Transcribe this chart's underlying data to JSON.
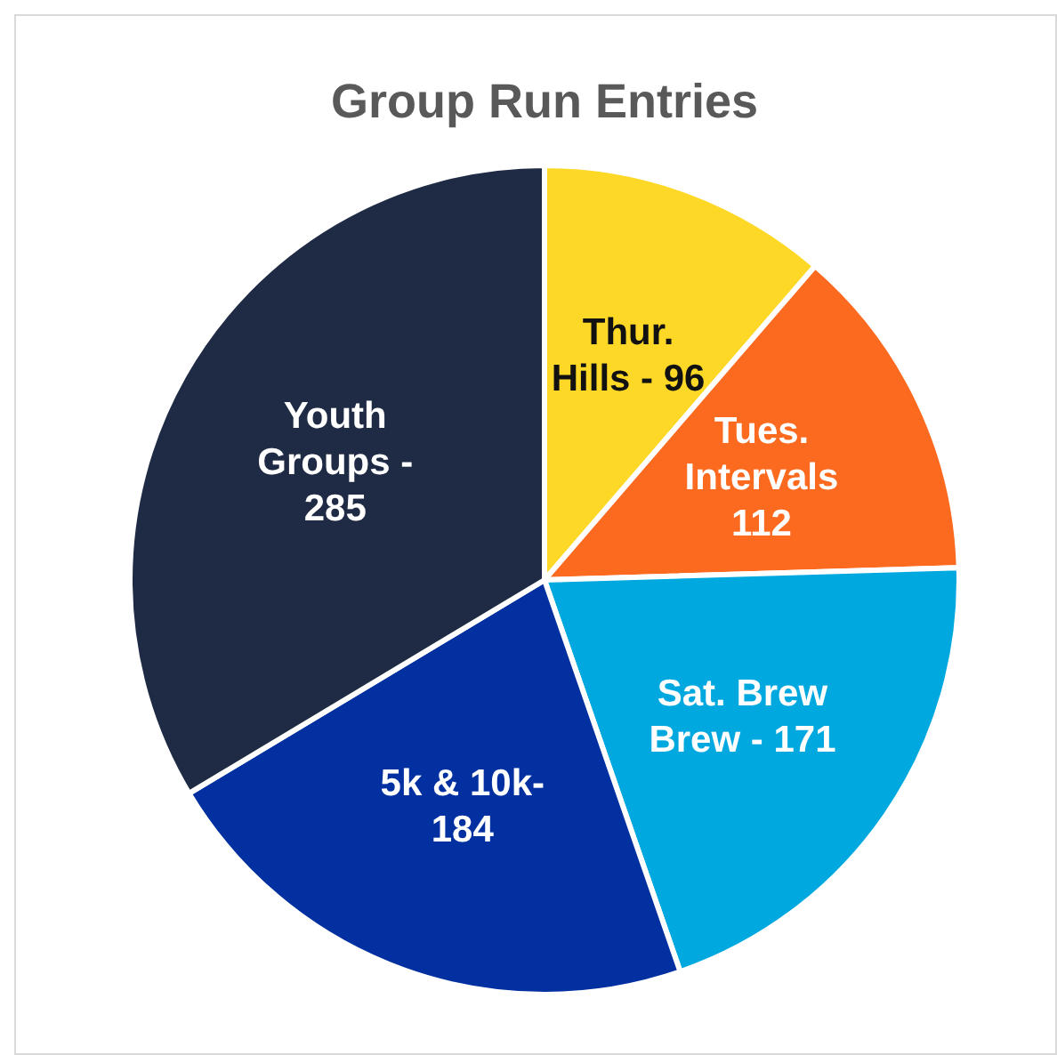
{
  "chart_data": {
    "type": "pie",
    "title": "Group Run Entries",
    "categories": [
      "Thur. Hills - 96",
      "Tues. Intervals 112",
      "Sat. Brew Brew - 171",
      "5k & 10k- 184",
      "Youth Groups - 285"
    ],
    "values": [
      96,
      112,
      171,
      184,
      285
    ],
    "colors": [
      "#fdd826",
      "#fc6a1f",
      "#00a8e0",
      "#0230a0",
      "#1f2a44"
    ],
    "legend": false
  }
}
